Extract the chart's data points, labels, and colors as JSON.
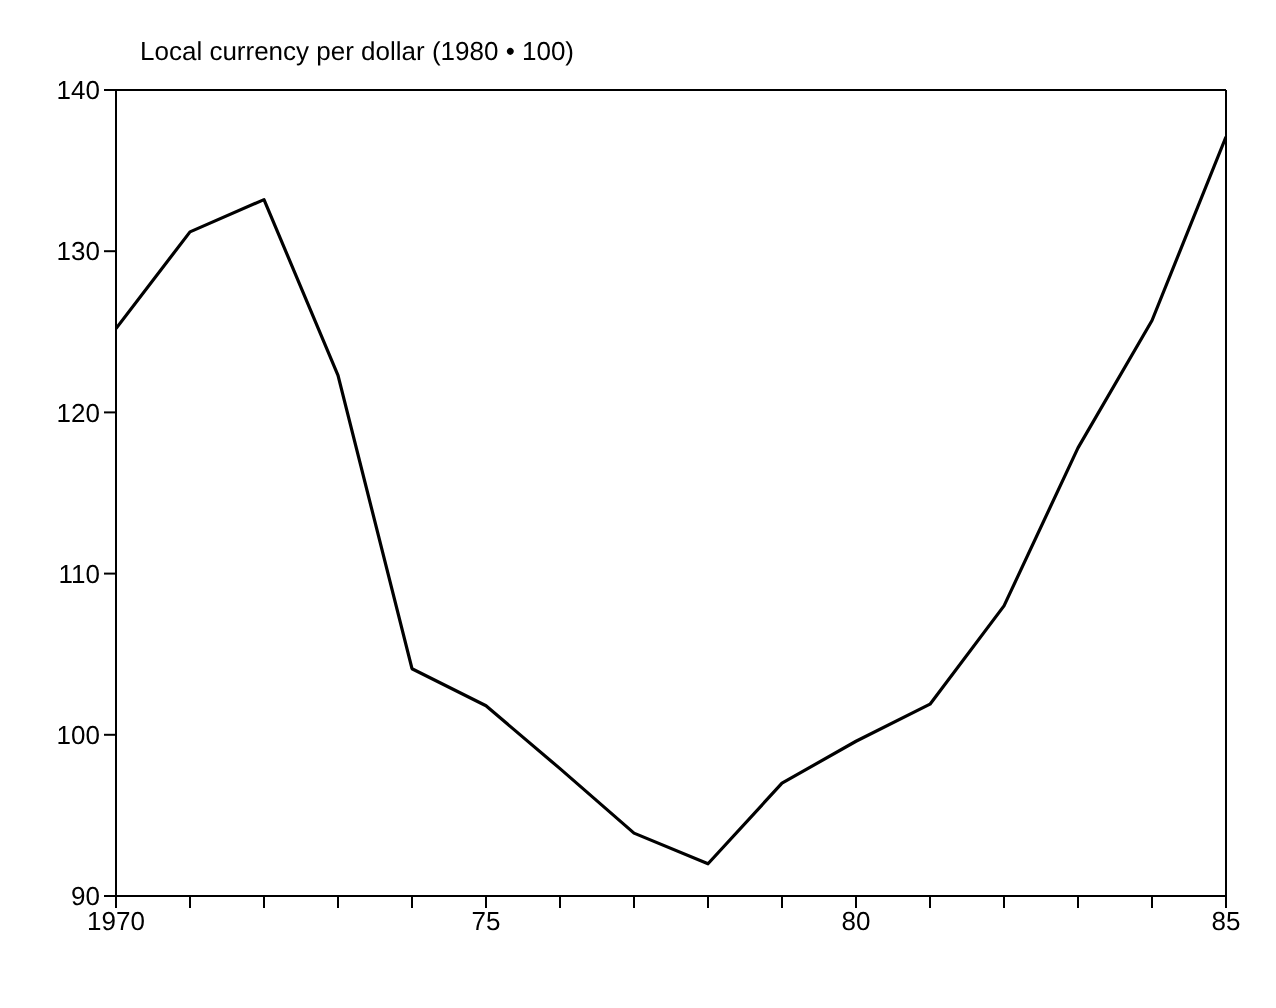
{
  "chart_data": {
    "type": "line",
    "ylabel": "Local currency per dollar (1980 • 100)",
    "x": [
      1970,
      1971,
      1972,
      1973,
      1974,
      1975,
      1976,
      1977,
      1978,
      1979,
      1980,
      1981,
      1982,
      1983,
      1984,
      1985
    ],
    "series": [
      {
        "color": "#000000",
        "values": [
          125.2,
          131.2,
          133.2,
          122.3,
          104.1,
          101.8,
          97.9,
          93.9,
          92,
          97,
          99.6,
          101.9,
          108,
          117.8,
          125.7,
          137.1
        ]
      }
    ],
    "xlim": [
      1970,
      1985
    ],
    "xticks": [
      {
        "value": 1970,
        "label": "1970"
      },
      {
        "value": 1971,
        "label": null
      },
      {
        "value": 1972,
        "label": null
      },
      {
        "value": 1973,
        "label": null
      },
      {
        "value": 1974,
        "label": null
      },
      {
        "value": 1975,
        "label": "75"
      },
      {
        "value": 1976,
        "label": null
      },
      {
        "value": 1977,
        "label": null
      },
      {
        "value": 1978,
        "label": null
      },
      {
        "value": 1979,
        "label": null
      },
      {
        "value": 1980,
        "label": "80"
      },
      {
        "value": 1981,
        "label": null
      },
      {
        "value": 1982,
        "label": null
      },
      {
        "value": 1983,
        "label": null
      },
      {
        "value": 1984,
        "label": null
      },
      {
        "value": 1985,
        "label": "85"
      }
    ],
    "ylim": [
      90,
      140
    ],
    "yticks": [
      90,
      100,
      110,
      120,
      130,
      140
    ],
    "grid": false,
    "marker": "none",
    "line_style": "solid"
  }
}
